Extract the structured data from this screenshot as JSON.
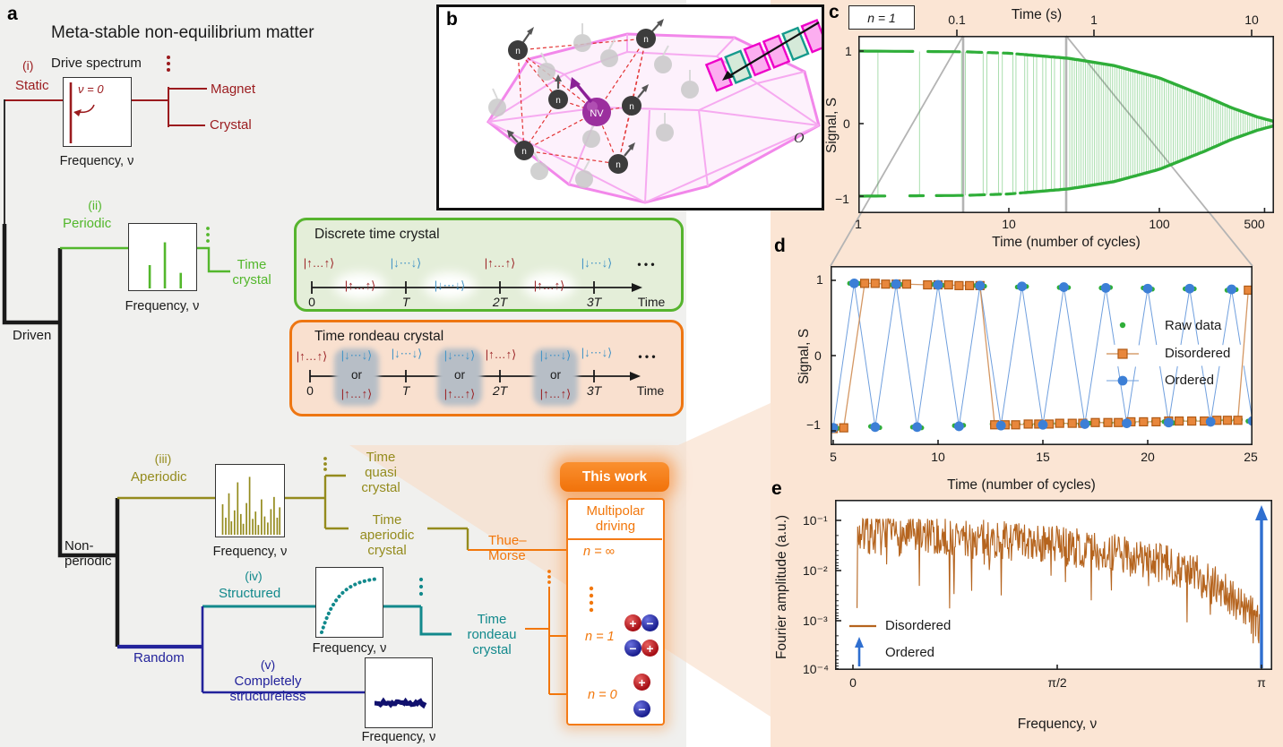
{
  "palette": {
    "background_gray": "#f0f0ee",
    "peach": "#fbe5d4",
    "fan_peach": "#f8dcc6",
    "static_red": "#9b1b1e",
    "periodic_green": "#53b72c",
    "aperiodic_olive": "#948b1d",
    "structured_teal": "#12898c",
    "structureless_navy": "#23239b",
    "orange": "#f2770b",
    "raw_green": "#2fae39",
    "disordered_orange": "#e8873c",
    "ordered_blue": "#3c7fd6",
    "fourier_brown": "#b5641e",
    "arrow_blue": "#2f6fd0",
    "ket_up_red": "#9b2427",
    "ket_down_blue": "#4394c6",
    "diamond_pink": "#f287ea",
    "nv_purple": "#8a1f96",
    "connector_gray": "#b4b4b4"
  },
  "panel_a": {
    "label": "a",
    "title": "Meta-stable non-equilibrium matter",
    "driven": "Driven",
    "non_periodic": "Non-\nperiodic",
    "random": "Random",
    "thue_morse": "Thue–\nMorse",
    "static": {
      "roman": "(i)",
      "name": "Static",
      "spectrum_title": "Drive spectrum",
      "peak": "ν = 0",
      "axis": "Frequency, ν",
      "out1": "Magnet",
      "out2": "Crystal"
    },
    "periodic": {
      "roman": "(ii)",
      "name": "Periodic",
      "axis": "Frequency, ν",
      "out": "Time\ncrystal"
    },
    "aperiodic": {
      "roman": "(iii)",
      "name": "Aperiodic",
      "axis": "Frequency, ν",
      "out1": "Time\nquasi\ncrystal",
      "out2": "Time\naperiodic\ncrystal"
    },
    "structured": {
      "roman": "(iv)",
      "name": "Structured",
      "axis": "Frequency, ν",
      "out": "Time\nrondeau\ncrystal"
    },
    "structureless": {
      "roman": "(v)",
      "name": "Completely\nstructureless",
      "axis": "Frequency, ν"
    },
    "dtc": {
      "title": "Discrete time crystal",
      "ket_up": "|↑…↑⟩",
      "ket_down": "|↓⋯↓⟩",
      "t0": "0",
      "t1": "T",
      "t2": "2T",
      "t3": "3T",
      "time": "Time",
      "dots": "• • •"
    },
    "rondeau": {
      "title": "Time rondeau crystal",
      "or": "or",
      "ket_up": "|↑…↑⟩",
      "ket_down": "|↓⋯↓⟩",
      "t0": "0",
      "t1": "T",
      "t2": "2T",
      "t3": "3T",
      "time": "Time",
      "dots": "• • •"
    },
    "this_work": {
      "banner": "This work",
      "box_title": "Multipolar\ndriving",
      "n_inf": "n = ∞",
      "n_one": "n = 1",
      "n_zero": "n = 0",
      "plus": "+",
      "minus": "−"
    },
    "spectra": {
      "periodic": [
        [
          0.3,
          0.42
        ],
        [
          0.52,
          0.83
        ],
        [
          0.75,
          0.28
        ]
      ],
      "aperiodic": [
        [
          0.05,
          0.5
        ],
        [
          0.1,
          0.28
        ],
        [
          0.15,
          0.68
        ],
        [
          0.19,
          0.22
        ],
        [
          0.24,
          0.4
        ],
        [
          0.29,
          0.86
        ],
        [
          0.34,
          0.34
        ],
        [
          0.38,
          0.18
        ],
        [
          0.43,
          0.52
        ],
        [
          0.48,
          0.95
        ],
        [
          0.53,
          0.26
        ],
        [
          0.575,
          0.38
        ],
        [
          0.62,
          0.16
        ],
        [
          0.67,
          0.58
        ],
        [
          0.72,
          0.3
        ],
        [
          0.77,
          0.2
        ],
        [
          0.82,
          0.42
        ],
        [
          0.87,
          0.62
        ],
        [
          0.92,
          0.28
        ],
        [
          0.96,
          0.45
        ]
      ]
    }
  },
  "panel_b": {
    "label": "b",
    "nv": "NV",
    "n": "n",
    "o": "O"
  },
  "panel_c": {
    "label": "c",
    "badge": "n = 1",
    "top_axis_label": "Time (s)",
    "top_ticks": [
      "0.1",
      "1",
      "10"
    ],
    "xlabel": "Time (number of cycles)",
    "ylabel": "Signal, S",
    "xticks": [
      "1",
      "10",
      "100",
      "500"
    ],
    "yticks": [
      "1",
      "0",
      "−1"
    ]
  },
  "panel_d": {
    "label": "d",
    "xlabel": "Time (number of cycles)",
    "ylabel": "Signal, S",
    "xticks": [
      "5",
      "10",
      "15",
      "20",
      "25"
    ],
    "yticks": [
      "1",
      "0",
      "−1"
    ],
    "legend": [
      "Raw data",
      "Disordered",
      "Ordered"
    ]
  },
  "panel_e": {
    "label": "e",
    "xlabel": "Frequency, ν",
    "ylabel": "Fourier amplitude (a.u.)",
    "xticks": [
      "0",
      "π/2",
      "π"
    ],
    "yticks": [
      "10⁻¹",
      "10⁻²",
      "10⁻³",
      "10⁻⁴"
    ],
    "legend": [
      "Disordered",
      "Ordered"
    ]
  },
  "chart_data": [
    {
      "id": "c",
      "type": "line",
      "title": "",
      "xlabel": "Time (number of cycles)",
      "xlabel_top": "Time (s)",
      "ylabel": "Signal, S",
      "annotation": "n = 1",
      "xscale": "log",
      "xlim": [
        1,
        577
      ],
      "ylim": [
        -1.25,
        1.25
      ],
      "x_ticks": [
        1,
        10,
        100,
        500
      ],
      "top_ticks_cycles": [
        [
          "0.1",
          4.5
        ],
        [
          "1",
          37
        ],
        [
          "10",
          410
        ]
      ],
      "y_ticks": [
        1,
        0,
        -1
      ],
      "color": "#2fae39",
      "description": "period-doubled signal oscillating between +1 and -1 with decaying envelope",
      "envelope": [
        [
          1,
          1.0
        ],
        [
          5,
          0.99
        ],
        [
          10,
          0.97
        ],
        [
          25,
          0.9
        ],
        [
          50,
          0.8
        ],
        [
          100,
          0.63
        ],
        [
          200,
          0.38
        ],
        [
          300,
          0.22
        ],
        [
          450,
          0.09
        ],
        [
          577,
          0.03
        ]
      ],
      "zoom_window": [
        5,
        25
      ]
    },
    {
      "id": "d",
      "type": "scatter",
      "xlabel": "Time (number of cycles)",
      "ylabel": "Signal, S",
      "xlim": [
        5,
        25
      ],
      "ylim": [
        -1.25,
        1.25
      ],
      "x_ticks": [
        5,
        10,
        15,
        20,
        25
      ],
      "y_ticks": [
        1,
        0,
        -1
      ],
      "series": [
        {
          "name": "Raw data",
          "color": "#2fae39",
          "marker": "dot",
          "derived": "clusters around Ordered and Disordered points"
        },
        {
          "name": "Disordered",
          "color": "#e8873c",
          "edge": "#b05a15",
          "line": "#cf8c52",
          "marker": "square",
          "points": [
            [
              5,
              -0.97
            ],
            [
              5.5,
              -0.96
            ],
            [
              6.5,
              0.96
            ],
            [
              7,
              0.96
            ],
            [
              7.5,
              0.95
            ],
            [
              8,
              0.95
            ],
            [
              8.5,
              0.95
            ],
            [
              9.5,
              0.94
            ],
            [
              10,
              0.94
            ],
            [
              10.5,
              0.94
            ],
            [
              11,
              0.93
            ],
            [
              11.5,
              0.93
            ],
            [
              12,
              0.93
            ],
            [
              12.7,
              -0.92
            ],
            [
              13.2,
              -0.92
            ],
            [
              13.7,
              -0.92
            ],
            [
              14.3,
              -0.91
            ],
            [
              14.8,
              -0.91
            ],
            [
              15.3,
              -0.91
            ],
            [
              15.8,
              -0.9
            ],
            [
              16.4,
              -0.9
            ],
            [
              16.9,
              -0.9
            ],
            [
              17.5,
              -0.89
            ],
            [
              18.1,
              -0.89
            ],
            [
              18.6,
              -0.89
            ],
            [
              19.2,
              -0.88
            ],
            [
              19.8,
              -0.88
            ],
            [
              20.4,
              -0.88
            ],
            [
              21,
              -0.87
            ],
            [
              21.5,
              -0.87
            ],
            [
              22.1,
              -0.87
            ],
            [
              22.7,
              -0.87
            ],
            [
              23.3,
              -0.86
            ],
            [
              23.8,
              -0.86
            ],
            [
              24.3,
              -0.86
            ],
            [
              24.8,
              0.87
            ]
          ]
        },
        {
          "name": "Ordered",
          "color": "#3c7fd6",
          "line": "#6f9fde",
          "marker": "circle",
          "points": [
            [
              5,
              -0.96
            ],
            [
              6,
              0.96
            ],
            [
              7,
              -0.95
            ],
            [
              8,
              0.95
            ],
            [
              9,
              -0.95
            ],
            [
              10,
              0.94
            ],
            [
              11,
              -0.94
            ],
            [
              12,
              0.93
            ],
            [
              13,
              -0.93
            ],
            [
              14,
              0.92
            ],
            [
              15,
              -0.92
            ],
            [
              16,
              0.91
            ],
            [
              17,
              -0.91
            ],
            [
              18,
              0.9
            ],
            [
              19,
              -0.9
            ],
            [
              20,
              0.89
            ],
            [
              21,
              -0.89
            ],
            [
              22,
              0.89
            ],
            [
              23,
              -0.88
            ],
            [
              24,
              0.88
            ],
            [
              25,
              -0.87
            ]
          ]
        }
      ]
    },
    {
      "id": "e",
      "type": "line",
      "xlabel": "Frequency, ν",
      "ylabel": "Fourier amplitude (a.u.)",
      "yscale": "log",
      "ylim": [
        0.0001,
        0.25
      ],
      "x_ticks": [
        "0",
        "π/2",
        "π"
      ],
      "y_ticks": [
        "10⁻¹",
        "10⁻²",
        "10⁻³",
        "10⁻⁴"
      ],
      "series": [
        {
          "name": "Disordered",
          "color": "#b5641e",
          "kind": "noisy spectrum",
          "envelope_log10": [
            [
              0,
              -1.28
            ],
            [
              0.2,
              -1.33
            ],
            [
              0.4,
              -1.42
            ],
            [
              0.55,
              -1.55
            ],
            [
              0.7,
              -1.75
            ],
            [
              0.8,
              -1.95
            ],
            [
              0.88,
              -2.2
            ],
            [
              0.94,
              -2.6
            ],
            [
              0.98,
              -2.95
            ],
            [
              1,
              -3.1
            ]
          ],
          "noise_log10": 0.4,
          "n_points": 640,
          "seed": 7
        },
        {
          "name": "Ordered",
          "kind": "delta peak arrow",
          "color": "#2f6fd0",
          "x": "π",
          "from": 0.0001,
          "to": 0.22
        }
      ]
    }
  ]
}
